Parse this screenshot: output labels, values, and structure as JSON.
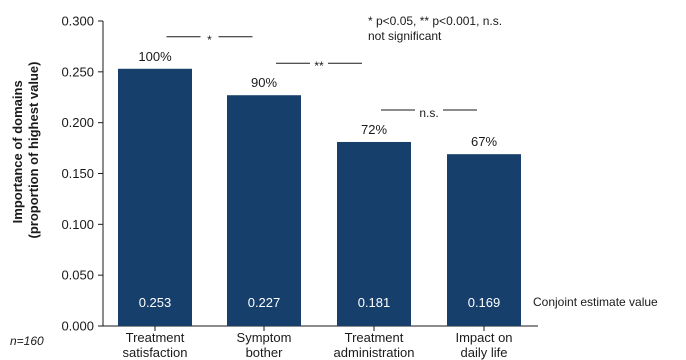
{
  "chart_data": {
    "type": "bar",
    "categories": [
      [
        "Treatment",
        "satisfaction"
      ],
      [
        "Symptom",
        "bother"
      ],
      [
        "Treatment",
        "administration"
      ],
      [
        "Impact on",
        "daily life"
      ]
    ],
    "values": [
      0.253,
      0.227,
      0.181,
      0.169
    ],
    "value_labels": [
      "0.253",
      "0.227",
      "0.181",
      "0.169"
    ],
    "percent_labels": [
      "100%",
      "90%",
      "72%",
      "67%"
    ],
    "ylabel_lines": [
      "Importance of domains",
      "(proportion of highest value)"
    ],
    "ylim": [
      0,
      0.3
    ],
    "yticks": [
      "0.000",
      "0.050",
      "0.100",
      "0.150",
      "0.200",
      "0.250",
      "0.300"
    ],
    "bar_color": "#173f6b",
    "value_row_label": "Conjoint estimate value",
    "significance": [
      {
        "from": 0,
        "to": 1,
        "label": "*"
      },
      {
        "from": 1,
        "to": 2,
        "label": "**"
      },
      {
        "from": 2,
        "to": 3,
        "label": "n.s."
      }
    ],
    "legend_note": [
      "* p<0.05, ** p<0.001, n.s.",
      "not significant"
    ],
    "sample_note": "n=160",
    "grid": false
  }
}
